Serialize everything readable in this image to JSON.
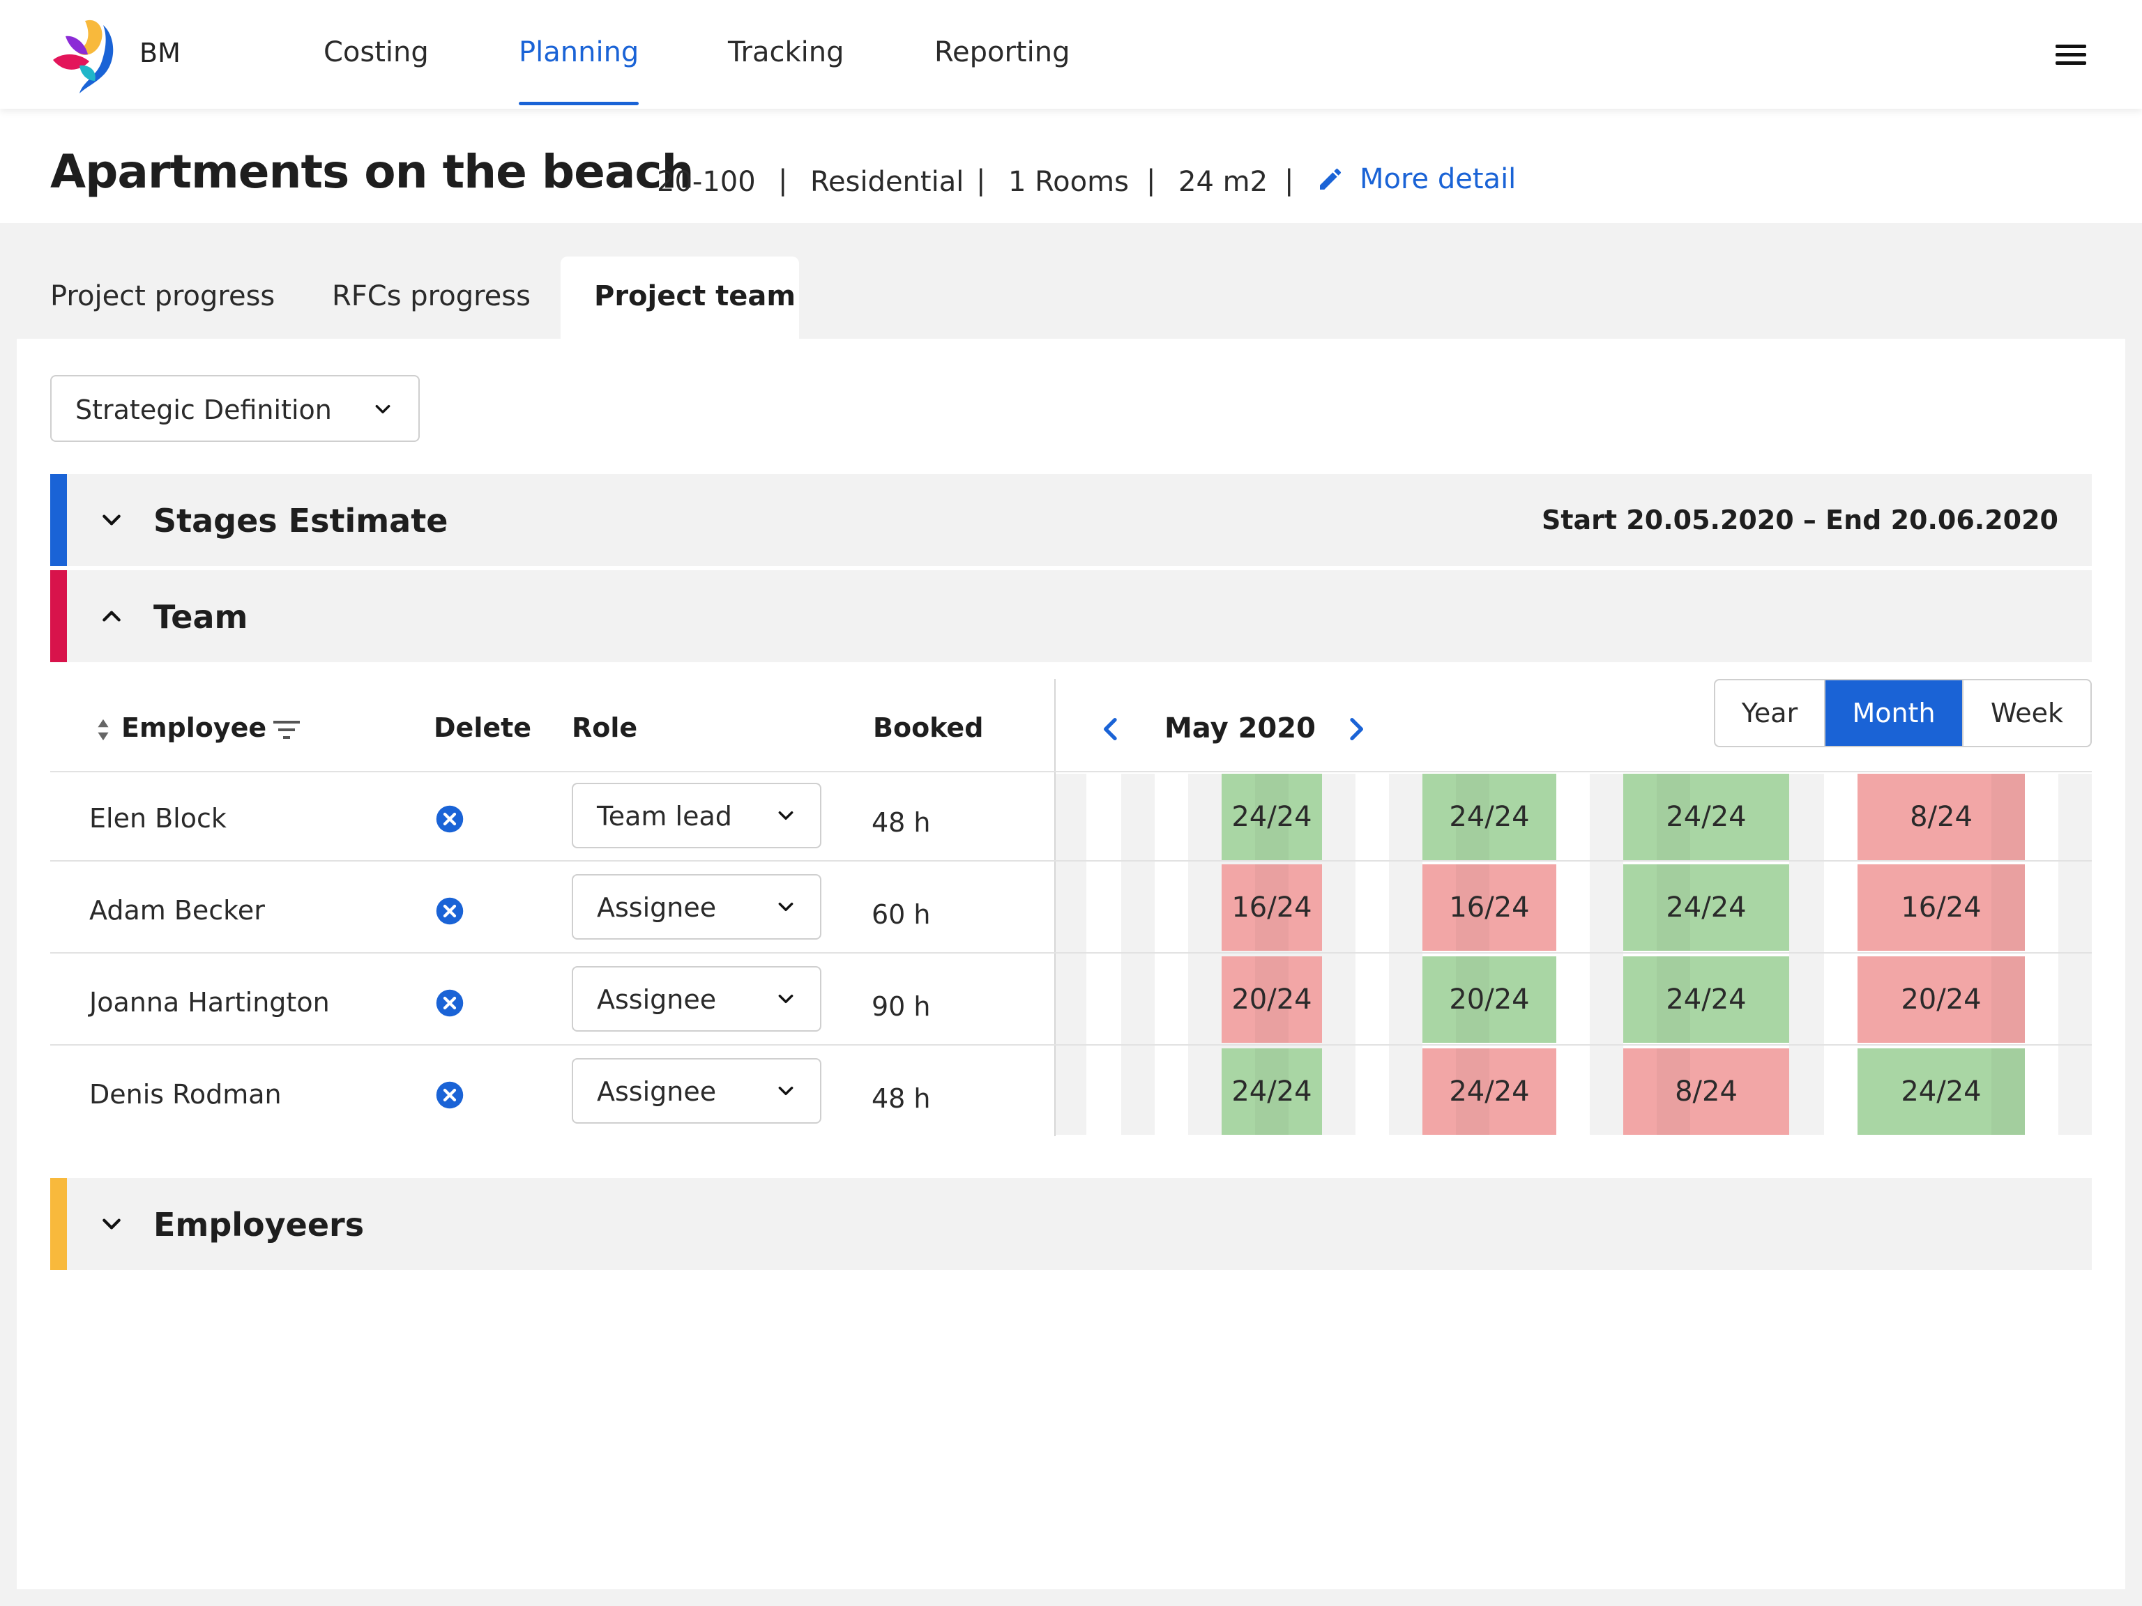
{
  "nav": {
    "brand": "BM",
    "items": [
      {
        "label": "Costing"
      },
      {
        "label": "Planning",
        "active": true
      },
      {
        "label": "Tracking"
      },
      {
        "label": "Reporting"
      }
    ],
    "menu_icon": "hamburger-menu-icon"
  },
  "project": {
    "title": "Apartments on the beach",
    "code": "20-100",
    "type": "Residential",
    "rooms": "1 Rooms",
    "area": "24 m2",
    "separator": "|",
    "more_detail": "More detail"
  },
  "tabs": [
    {
      "label": "Project progress"
    },
    {
      "label": "RFCs progress"
    },
    {
      "label": "Project team",
      "active": true
    }
  ],
  "stage_select": {
    "value": "Strategic Definition"
  },
  "sections": {
    "stages": {
      "title": "Stages Estimate",
      "dates": "Start 20.05.2020 – End 20.06.2020",
      "color": "#1a63d6"
    },
    "team": {
      "title": "Team",
      "color": "#d8134b"
    },
    "employers": {
      "title": "Employeers",
      "color": "#f8b93c"
    }
  },
  "table": {
    "headers": {
      "employee": "Employee",
      "delete": "Delete",
      "role": "Role",
      "booked": "Booked"
    },
    "rows": [
      {
        "name": "Elen Block",
        "role": "Team lead",
        "booked": "48 h",
        "cells": [
          {
            "text": "24/24",
            "status": "green"
          },
          {
            "text": "24/24",
            "status": "green"
          },
          {
            "text": "24/24",
            "status": "green"
          },
          {
            "text": "8/24",
            "status": "red"
          }
        ]
      },
      {
        "name": "Adam Becker",
        "role": "Assignee",
        "booked": "60 h",
        "cells": [
          {
            "text": "16/24",
            "status": "red"
          },
          {
            "text": "16/24",
            "status": "red"
          },
          {
            "text": "24/24",
            "status": "green"
          },
          {
            "text": "16/24",
            "status": "red"
          }
        ]
      },
      {
        "name": "Joanna Hartington",
        "role": "Assignee",
        "booked": "90 h",
        "cells": [
          {
            "text": "20/24",
            "status": "red"
          },
          {
            "text": "20/24",
            "status": "green"
          },
          {
            "text": "24/24",
            "status": "green"
          },
          {
            "text": "20/24",
            "status": "red"
          }
        ]
      },
      {
        "name": "Denis Rodman",
        "role": "Assignee",
        "booked": "48 h",
        "cells": [
          {
            "text": "24/24",
            "status": "green"
          },
          {
            "text": "24/24",
            "status": "red"
          },
          {
            "text": "8/24",
            "status": "red"
          },
          {
            "text": "24/24",
            "status": "green"
          }
        ]
      }
    ]
  },
  "calendar": {
    "month": "May 2020",
    "views": [
      {
        "label": "Year"
      },
      {
        "label": "Month",
        "active": true
      },
      {
        "label": "Week"
      }
    ]
  },
  "colors": {
    "accent": "#1a63d6",
    "green": "#a9d6a4",
    "red": "#f2a6a6"
  }
}
